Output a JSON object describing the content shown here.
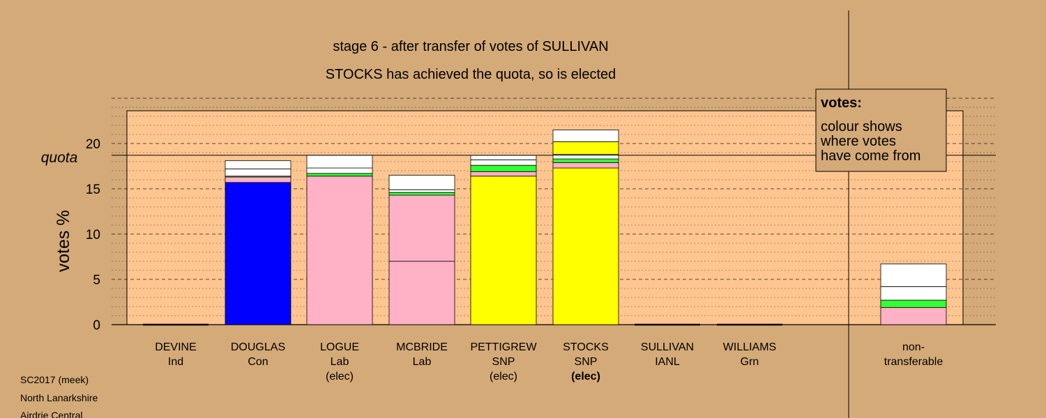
{
  "chart_data": {
    "type": "bar",
    "stacked": true,
    "title": "stage 6 - after transfer of votes of SULLIVAN",
    "subtitle": "STOCKS has achieved the quota, so is elected",
    "ylabel": "votes %",
    "ylim": [
      0,
      25
    ],
    "yticks": [
      "0",
      "5",
      "10",
      "15",
      "20"
    ],
    "quota_label": "quota",
    "quota": 18.7,
    "grid": true,
    "legend": {
      "position": "top-right",
      "title": "votes:",
      "lines": [
        "colour shows",
        "where votes",
        "have come from"
      ]
    },
    "colors": {
      "Con": "#0000ff",
      "Lab": "#ffb1c5",
      "SNP": "#ffff00",
      "Grn": "#33ff33",
      "other": "#ffffff"
    },
    "candidates": [
      {
        "name": "DEVINE",
        "party": "Ind",
        "status": "",
        "segments": []
      },
      {
        "name": "DOUGLAS",
        "party": "Con",
        "status": "",
        "segments": [
          {
            "source": "Con",
            "value": 15.7
          },
          {
            "source": "Lab",
            "value": 0.6
          },
          {
            "source": "Grn",
            "value": 0.1
          },
          {
            "source": "other",
            "value": 0.8
          },
          {
            "source": "other",
            "value": 0.9
          }
        ]
      },
      {
        "name": "LOGUE",
        "party": "Lab",
        "status": "(elec)",
        "segments": [
          {
            "source": "Lab",
            "value": 16.4
          },
          {
            "source": "Grn",
            "value": 0.3
          },
          {
            "source": "other",
            "value": 0.6
          },
          {
            "source": "other",
            "value": 1.4
          }
        ]
      },
      {
        "name": "MCBRIDE",
        "party": "Lab",
        "status": "",
        "segments": [
          {
            "source": "Lab",
            "value": 7.0
          },
          {
            "source": "Lab",
            "value": 7.3
          },
          {
            "source": "Grn",
            "value": 0.3
          },
          {
            "source": "other",
            "value": 0.3
          },
          {
            "source": "other",
            "value": 1.6
          }
        ]
      },
      {
        "name": "PETTIGREW",
        "party": "SNP",
        "status": "(elec)",
        "segments": [
          {
            "source": "SNP",
            "value": 16.4
          },
          {
            "source": "Lab",
            "value": 0.5
          },
          {
            "source": "Grn",
            "value": 0.7
          },
          {
            "source": "other",
            "value": 0.6
          },
          {
            "source": "other",
            "value": 0.5
          }
        ]
      },
      {
        "name": "STOCKS",
        "party": "SNP",
        "status": "(elec)",
        "segments": [
          {
            "source": "SNP",
            "value": 17.3
          },
          {
            "source": "Lab",
            "value": 0.6
          },
          {
            "source": "Grn",
            "value": 0.4
          },
          {
            "source": "other",
            "value": 0.5
          },
          {
            "source": "SNP",
            "value": 1.4
          },
          {
            "source": "other",
            "value": 1.3
          }
        ]
      },
      {
        "name": "SULLIVAN",
        "party": "IANL",
        "status": "",
        "segments": []
      },
      {
        "name": "WILLIAMS",
        "party": "Grn",
        "status": "",
        "segments": []
      }
    ],
    "nontransferable": {
      "label_lines": [
        "non-",
        "transferable"
      ],
      "segments": [
        {
          "source": "Lab",
          "value": 1.9
        },
        {
          "source": "Grn",
          "value": 0.8
        },
        {
          "source": "other",
          "value": 1.5
        },
        {
          "source": "other",
          "value": 2.5
        }
      ]
    }
  },
  "footer": {
    "lines": [
      "SC2017 (meek)",
      "North Lanarkshire",
      "Airdrie Central"
    ]
  }
}
